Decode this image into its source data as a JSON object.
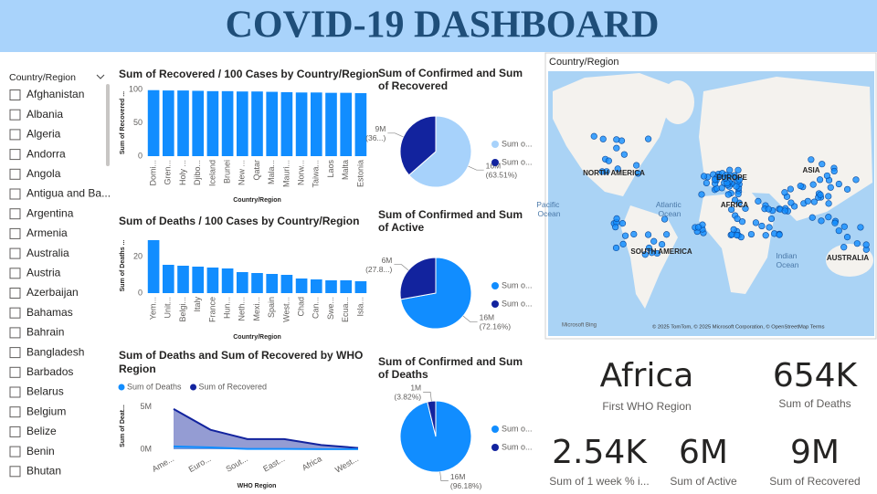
{
  "title": "COVID-19 DASHBOARD",
  "slicer": {
    "title": "Country/Region",
    "items": [
      "Afghanistan",
      "Albania",
      "Algeria",
      "Andorra",
      "Angola",
      "Antigua and Ba...",
      "Argentina",
      "Armenia",
      "Australia",
      "Austria",
      "Azerbaijan",
      "Bahamas",
      "Bahrain",
      "Bangladesh",
      "Barbados",
      "Belarus",
      "Belgium",
      "Belize",
      "Benin",
      "Bhutan"
    ]
  },
  "chart_data": [
    {
      "type": "bar",
      "title": "Sum of Recovered / 100 Cases by Country/Region",
      "y_label": "Sum of Recovered ...",
      "x_label": "Country/Region",
      "color": "#118dff",
      "categories": [
        "Domi...",
        "Gren...",
        "Holy ...",
        "Djibo...",
        "Iceland",
        "Brunei",
        "New ...",
        "Qatar",
        "Mala...",
        "Mauri...",
        "Norw...",
        "Taiwa...",
        "Laos",
        "Malta",
        "Estonia"
      ],
      "values": [
        99,
        98.5,
        98.5,
        98,
        97.5,
        97.5,
        97,
        97,
        96.5,
        96,
        95.5,
        95.5,
        95,
        95,
        94.5
      ],
      "ylim": [
        0,
        100
      ],
      "yticks": [
        0,
        50,
        100
      ]
    },
    {
      "type": "bar",
      "title": "Sum of Deaths / 100 Cases by Country/Region",
      "y_label": "Sum of Deaths ...",
      "x_label": "Country/Region",
      "color": "#118dff",
      "categories": [
        "Yem...",
        "Unit...",
        "Belgi...",
        "Italy",
        "France",
        "Hun...",
        "Neth...",
        "Mexi...",
        "Spain",
        "West...",
        "Chad",
        "Can...",
        "Swe...",
        "Ecua...",
        "Isla..."
      ],
      "values": [
        29,
        15.5,
        15,
        14.5,
        14,
        13.5,
        11.5,
        11,
        10.5,
        10,
        8,
        7.5,
        7,
        7,
        6.5
      ],
      "ylim": [
        0,
        30
      ],
      "yticks": [
        0,
        20
      ]
    },
    {
      "type": "area",
      "title": "Sum of Deaths and Sum of Recovered by WHO Region",
      "y_label": "Sum of Deat...",
      "x_label": "WHO Region",
      "categories": [
        "Ame...",
        "Euro...",
        "Sout...",
        "East...",
        "Africa",
        "West..."
      ],
      "series": [
        {
          "name": "Sum of Deaths",
          "color": "#118dff",
          "values": [
            340000,
            210000,
            40000,
            40000,
            10000,
            8000
          ]
        },
        {
          "name": "Sum of Recovered",
          "color": "#12239e",
          "values": [
            4760000,
            2300000,
            1200000,
            1200000,
            500000,
            150000
          ]
        }
      ],
      "ylim": [
        0,
        5500000
      ],
      "yticks": [
        {
          "value": 0,
          "label": "0M"
        },
        {
          "value": 5000000,
          "label": "5M"
        }
      ]
    },
    {
      "type": "pie",
      "title": "Sum of Confirmed and Sum of Recovered",
      "categories": [
        "Sum o...",
        "Sum o..."
      ],
      "colors": [
        "#a7d2fb",
        "#12239e"
      ],
      "values": [
        16480000,
        9468000
      ],
      "value_labels": [
        [
          "16M",
          "(63.51%)"
        ],
        [
          "9M",
          "(36...)"
        ]
      ]
    },
    {
      "type": "pie",
      "title": "Sum of Confirmed and Sum of Active",
      "categories": [
        "Sum o...",
        "Sum o..."
      ],
      "colors": [
        "#118dff",
        "#12239e"
      ],
      "values": [
        16480000,
        6358000
      ],
      "value_labels": [
        [
          "16M",
          "(72.16%)"
        ],
        [
          "6M",
          "(27.8...)"
        ]
      ]
    },
    {
      "type": "pie",
      "title": "Sum of Confirmed and Sum of Deaths",
      "categories": [
        "Sum o...",
        "Sum o..."
      ],
      "colors": [
        "#118dff",
        "#12239e"
      ],
      "values": [
        16480000,
        654500
      ],
      "value_labels": [
        [
          "16M",
          "(96.18%)"
        ],
        [
          "1M",
          "(3.82%)"
        ]
      ]
    }
  ],
  "map": {
    "title": "Country/Region",
    "labels": [
      "NORTH AMERICA",
      "EUROPE",
      "ASIA",
      "Atlantic Ocean",
      "AFRICA",
      "SOUTH AMERICA",
      "Indian Ocean",
      "AUSTRALIA",
      "Pacific Ocean",
      "Microsoft Bing",
      "© 2025 TomTom, © 2025 Microsoft Corporation, © OpenStreetMap  Terms"
    ]
  },
  "cards": [
    {
      "value": "Africa",
      "label": "First WHO Region"
    },
    {
      "value": "654K",
      "label": "Sum of Deaths"
    },
    {
      "value": "2.54K",
      "label": "Sum of 1 week % i..."
    },
    {
      "value": "6M",
      "label": "Sum of Active"
    },
    {
      "value": "9M",
      "label": "Sum of Recovered"
    }
  ]
}
